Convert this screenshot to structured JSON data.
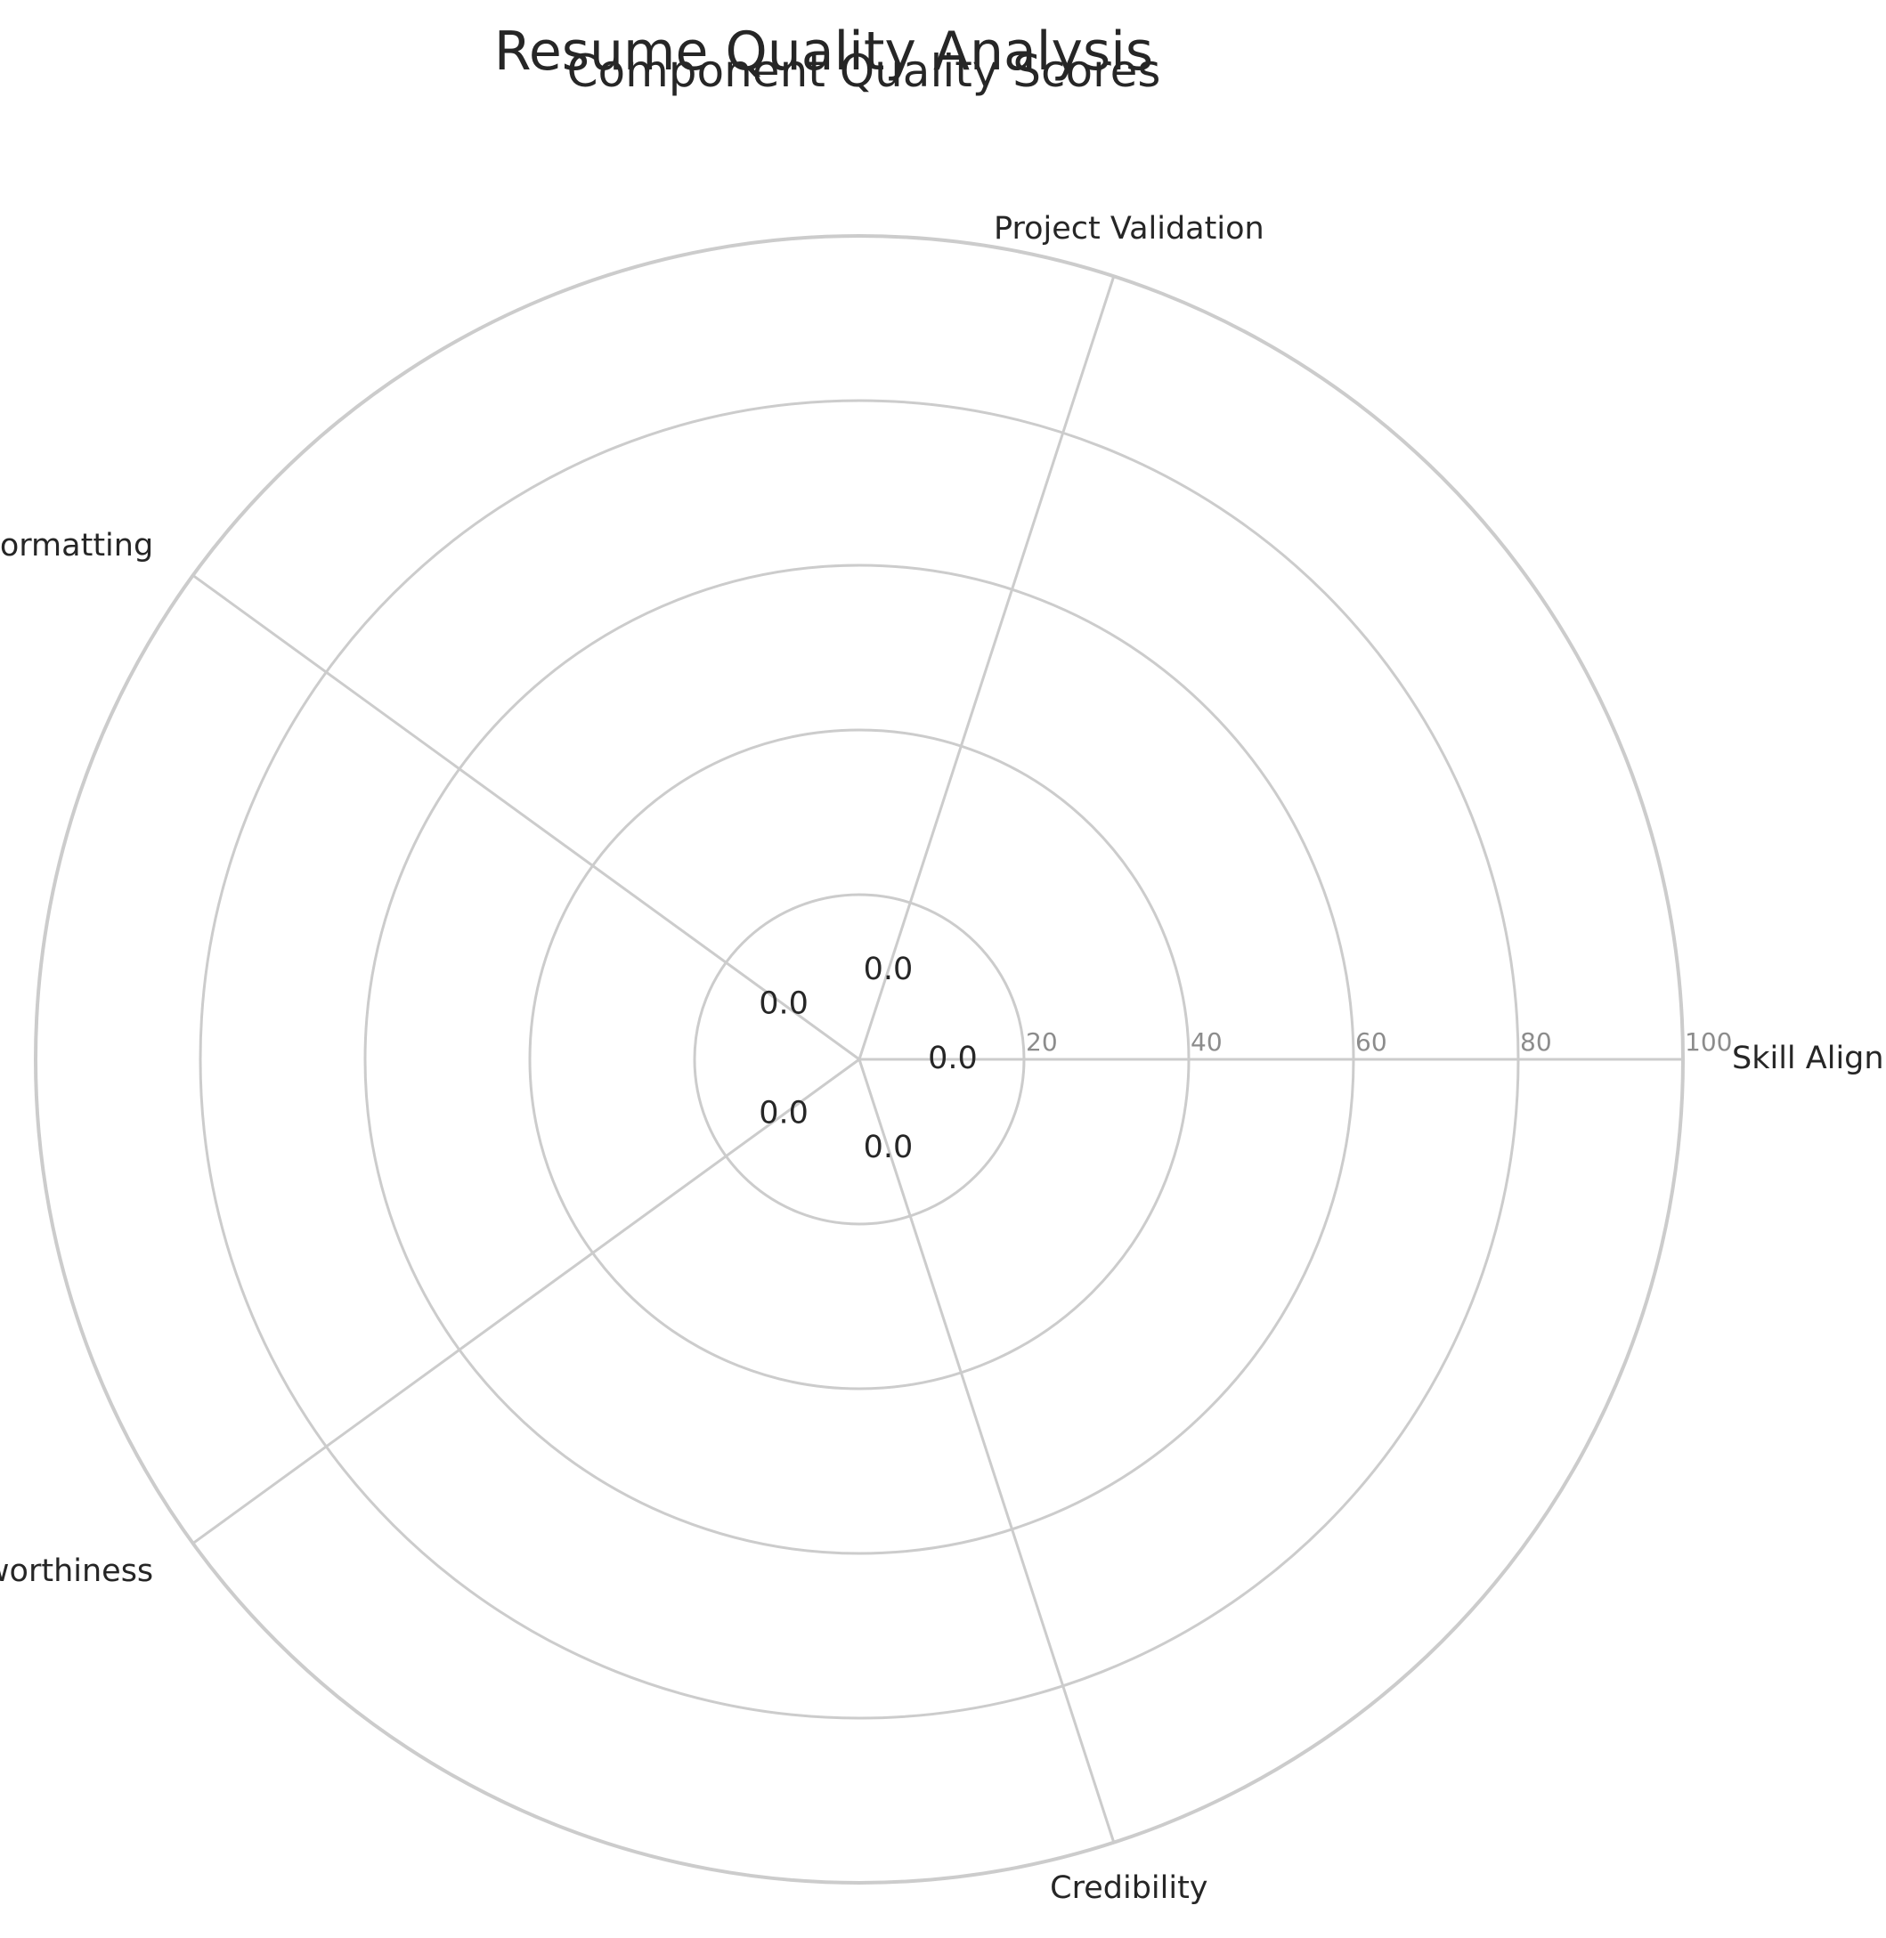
{
  "chart_data": {
    "type": "radar",
    "suptitle": "Resume Quality Analysis",
    "title": "Component Quality Scores",
    "categories": [
      "Skill Alignment",
      "Project Validation",
      "Formatting",
      "Trustworthiness",
      "Credibility"
    ],
    "values": [
      0.0,
      0.0,
      0.0,
      0.0,
      0.0
    ],
    "value_labels": [
      "0.0",
      "0.0",
      "0.0",
      "0.0",
      "0.0"
    ],
    "rlim": [
      0,
      100
    ],
    "rticks": [
      20,
      40,
      60,
      80,
      100
    ],
    "rtick_labels": [
      "20",
      "40",
      "60",
      "80",
      "100"
    ],
    "grid": true,
    "colors": {
      "grid": "#cccccc",
      "text": "#262626",
      "tick": "#8c8c8c"
    }
  }
}
